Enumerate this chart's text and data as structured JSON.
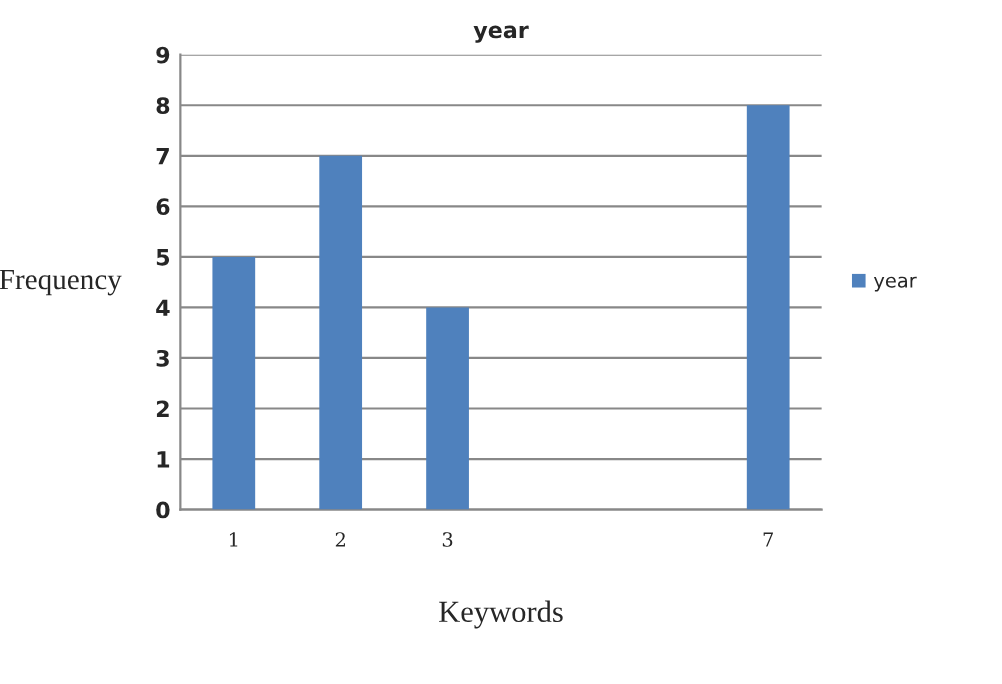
{
  "chart_data": {
    "type": "bar",
    "title": "year",
    "xlabel": "Keywords",
    "ylabel": "Frequency",
    "categories": [
      "1",
      "2",
      "3",
      null,
      null,
      "7"
    ],
    "series": [
      {
        "name": "year",
        "color": "#4f81bd",
        "values": [
          5,
          7,
          4,
          null,
          null,
          8
        ]
      }
    ],
    "ylim": [
      0,
      9
    ],
    "yticks": [
      0,
      1,
      2,
      3,
      4,
      5,
      6,
      7,
      8,
      9
    ],
    "grid": "y",
    "legend": "right"
  }
}
